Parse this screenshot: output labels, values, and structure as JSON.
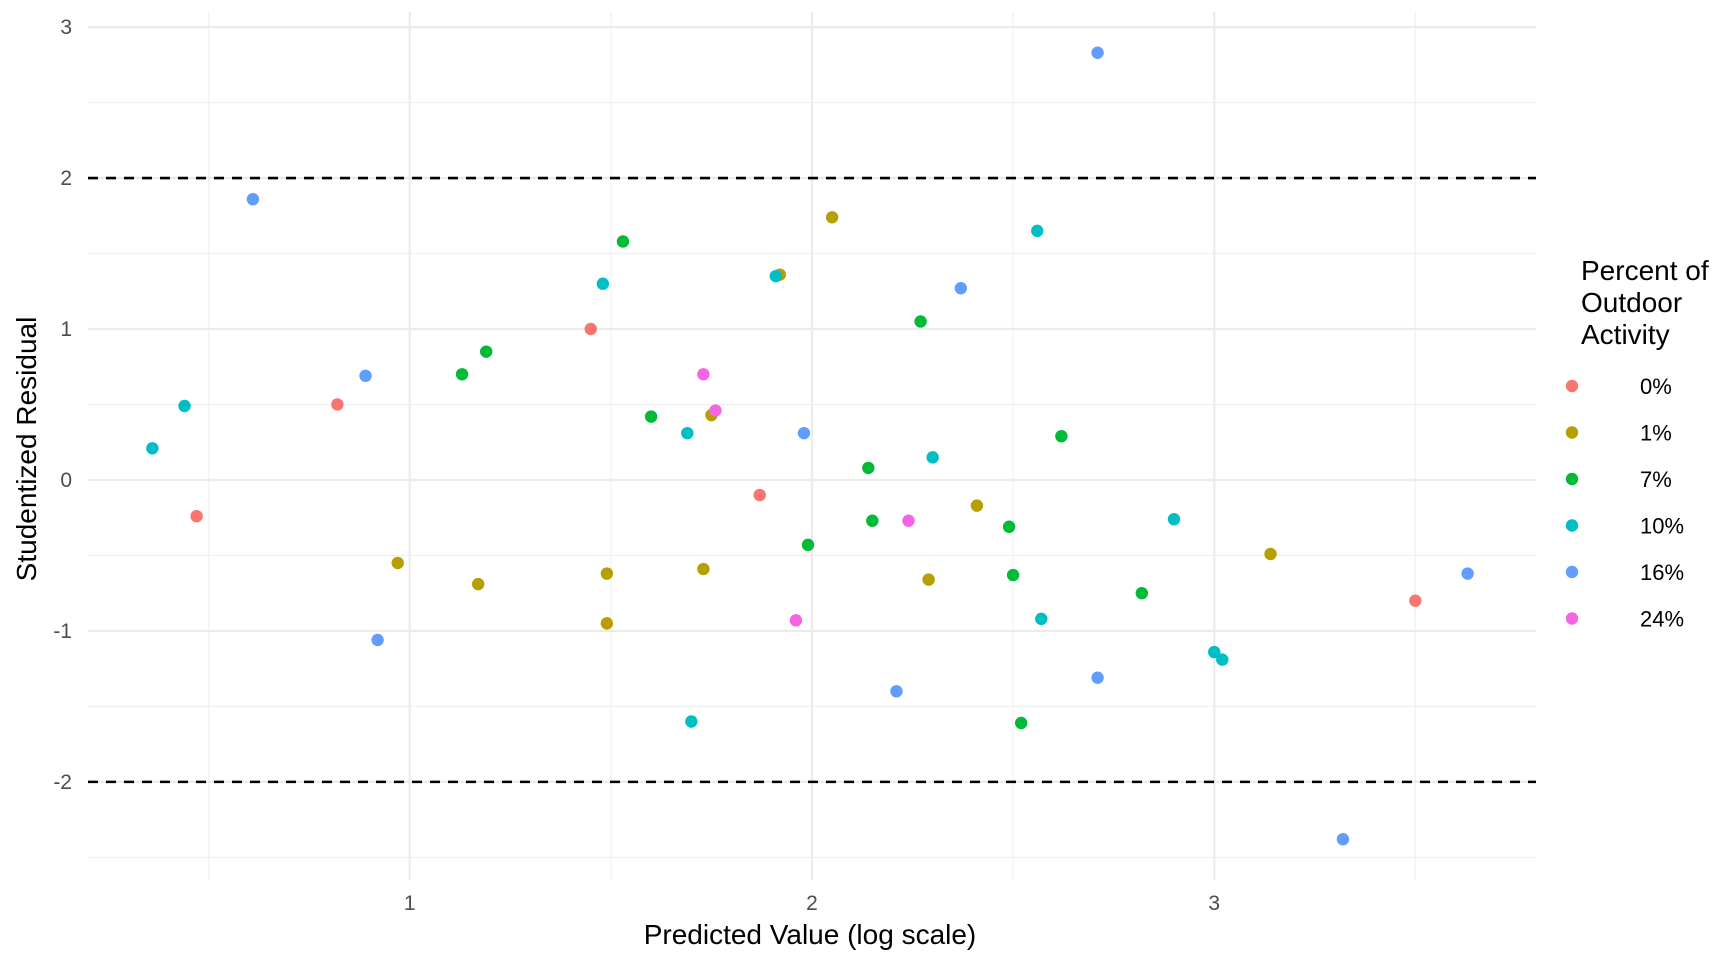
{
  "chart_data": {
    "type": "scatter",
    "title": "",
    "xlabel": "Predicted Value (log scale)",
    "ylabel": "Studentized Residual",
    "xlim": [
      0.2,
      3.8
    ],
    "ylim": [
      -2.65,
      3.1
    ],
    "x_ticks": [
      1,
      2,
      3
    ],
    "x_tick_labels": [
      "1",
      "2",
      "3"
    ],
    "y_ticks": [
      -2,
      -1,
      0,
      1,
      2,
      3
    ],
    "y_tick_labels": [
      "-2",
      "-1",
      "0",
      "1",
      "2",
      "3"
    ],
    "reference_lines": [
      2,
      -2
    ],
    "grid": true,
    "legend": {
      "title": [
        "Percent of",
        "Outdoor",
        "Activity"
      ],
      "position": "right"
    },
    "series": [
      {
        "name": "0%",
        "color": "#F8766D",
        "points": [
          [
            0.47,
            -0.24
          ],
          [
            0.82,
            0.5
          ],
          [
            1.45,
            1.0
          ],
          [
            1.87,
            -0.1
          ],
          [
            3.5,
            -0.8
          ]
        ]
      },
      {
        "name": "1%",
        "color": "#B79F00",
        "points": [
          [
            0.97,
            -0.55
          ],
          [
            1.17,
            -0.69
          ],
          [
            1.49,
            -0.62
          ],
          [
            1.49,
            -0.95
          ],
          [
            1.73,
            -0.59
          ],
          [
            1.75,
            0.43
          ],
          [
            1.92,
            1.36
          ],
          [
            2.05,
            1.74
          ],
          [
            2.29,
            -0.66
          ],
          [
            2.41,
            -0.17
          ],
          [
            3.14,
            -0.49
          ]
        ]
      },
      {
        "name": "7%",
        "color": "#00BA38",
        "points": [
          [
            1.13,
            0.7
          ],
          [
            1.19,
            0.85
          ],
          [
            1.53,
            1.58
          ],
          [
            1.6,
            0.42
          ],
          [
            1.99,
            -0.43
          ],
          [
            2.14,
            0.08
          ],
          [
            2.15,
            -0.27
          ],
          [
            2.27,
            1.05
          ],
          [
            2.49,
            -0.31
          ],
          [
            2.5,
            -0.63
          ],
          [
            2.52,
            -1.61
          ],
          [
            2.62,
            0.29
          ],
          [
            2.82,
            -0.75
          ]
        ]
      },
      {
        "name": "10%",
        "color": "#00BFC4",
        "points": [
          [
            0.36,
            0.21
          ],
          [
            0.44,
            0.49
          ],
          [
            1.48,
            1.3
          ],
          [
            1.69,
            0.31
          ],
          [
            1.7,
            -1.6
          ],
          [
            1.91,
            1.35
          ],
          [
            2.3,
            0.15
          ],
          [
            2.56,
            1.65
          ],
          [
            2.57,
            -0.92
          ],
          [
            2.9,
            -0.26
          ],
          [
            3.0,
            -1.14
          ],
          [
            3.02,
            -1.19
          ]
        ]
      },
      {
        "name": "16%",
        "color": "#619CFF",
        "points": [
          [
            0.61,
            1.86
          ],
          [
            0.89,
            0.69
          ],
          [
            0.92,
            -1.06
          ],
          [
            1.98,
            0.31
          ],
          [
            2.21,
            -1.4
          ],
          [
            2.37,
            1.27
          ],
          [
            2.71,
            2.83
          ],
          [
            2.71,
            -1.31
          ],
          [
            3.32,
            -2.38
          ],
          [
            3.63,
            -0.62
          ]
        ]
      },
      {
        "name": "24%",
        "color": "#F564E3",
        "points": [
          [
            1.73,
            0.7
          ],
          [
            1.76,
            0.46
          ],
          [
            1.96,
            -0.93
          ],
          [
            2.24,
            -0.27
          ]
        ]
      }
    ]
  }
}
